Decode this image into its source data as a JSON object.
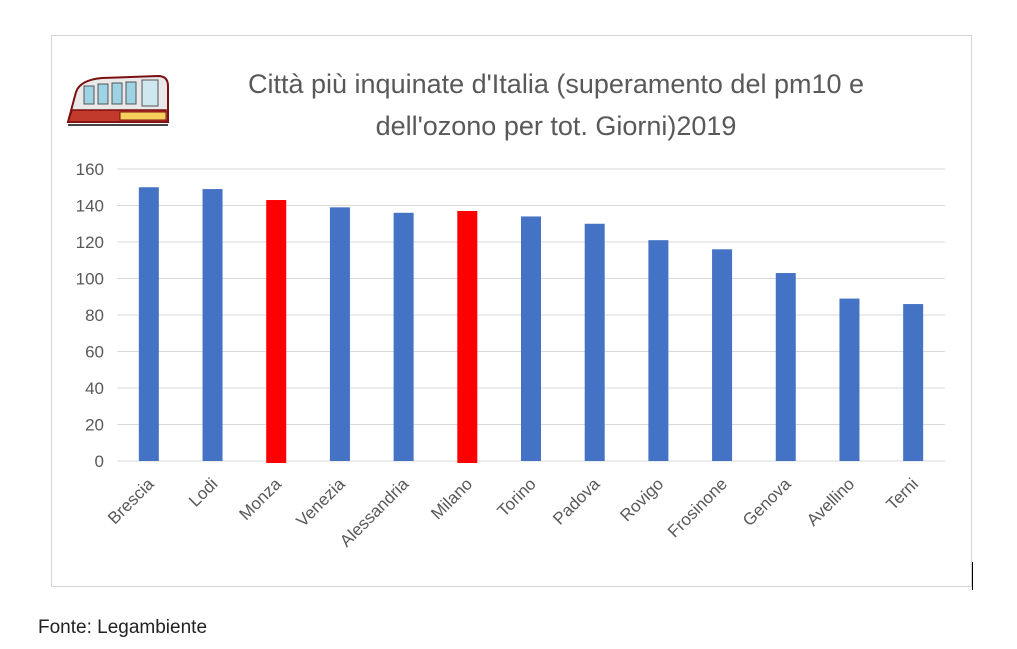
{
  "source_note": "Fonte: Legambiente",
  "chart_data": {
    "type": "bar",
    "title_lines": [
      "Città più inquinate d'Italia (superamento del pm10 e",
      "dell'ozono per tot. Giorni)2019"
    ],
    "categories": [
      "Brescia",
      "Lodi",
      "Monza",
      "Venezia",
      "Alessandria",
      "Milano",
      "Torino",
      "Padova",
      "Rovigo",
      "Frosinone",
      "Genova",
      "Avellino",
      "Terni"
    ],
    "values": [
      150,
      149,
      143,
      139,
      136,
      137,
      134,
      130,
      121,
      116,
      103,
      89,
      86
    ],
    "highlight": [
      false,
      false,
      true,
      false,
      false,
      true,
      false,
      false,
      false,
      false,
      false,
      false,
      false
    ],
    "ylim": [
      0,
      160
    ],
    "yticks": [
      0,
      20,
      40,
      60,
      80,
      100,
      120,
      140,
      160
    ],
    "grid": true,
    "colors": {
      "bar": "#4472c4",
      "highlight": "#ff0000",
      "grid": "#d9d9d9",
      "text": "#595959"
    }
  }
}
